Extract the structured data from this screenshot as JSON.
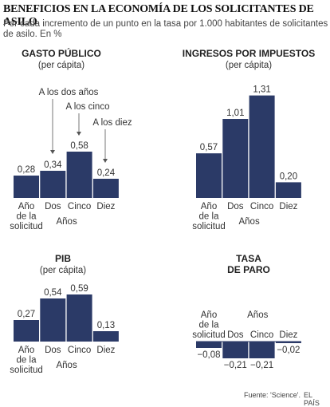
{
  "title": "BENEFICIOS EN LA ECONOMÍA DE LOS SOLICITANTES DE ASILO",
  "subtitle": "Por cada incremento de un punto en la tasa por 1.000 habitantes de solicitantes de asilo. En %",
  "colors": {
    "bar": "#2b3a67",
    "zero_line": "#2b3a67",
    "text": "#333333"
  },
  "chart_data": [
    {
      "type": "bar",
      "title": "GASTO PÚBLICO",
      "subtitle": "(per cápita)",
      "categories": [
        "Año de la solicitud",
        "Dos",
        "Cinco",
        "Diez"
      ],
      "category_lines": [
        [
          "Año",
          "de la",
          "solicitud"
        ],
        [
          "Dos"
        ],
        [
          "Cinco"
        ],
        [
          "Diez"
        ]
      ],
      "values": [
        0.28,
        0.34,
        0.58,
        0.24
      ],
      "value_labels": [
        "0,28",
        "0,34",
        "0,58",
        "0,24"
      ],
      "xlabel": "Años",
      "annotations": [
        {
          "text": "A los dos años",
          "category": 1
        },
        {
          "text": "A los cinco",
          "category": 2
        },
        {
          "text": "A los diez",
          "category": 3
        }
      ]
    },
    {
      "type": "bar",
      "title": "INGRESOS POR IMPUESTOS",
      "subtitle": "(per cápita)",
      "categories": [
        "Año de la solicitud",
        "Dos",
        "Cinco",
        "Diez"
      ],
      "category_lines": [
        [
          "Año",
          "de la",
          "solicitud"
        ],
        [
          "Dos"
        ],
        [
          "Cinco"
        ],
        [
          "Diez"
        ]
      ],
      "values": [
        0.57,
        1.01,
        1.31,
        0.2
      ],
      "value_labels": [
        "0,57",
        "1,01",
        "1,31",
        "0,20"
      ],
      "xlabel": "Años"
    },
    {
      "type": "bar",
      "title": "PIB",
      "subtitle": "(per cápita)",
      "categories": [
        "Año de la solicitud",
        "Dos",
        "Cinco",
        "Diez"
      ],
      "category_lines": [
        [
          "Año",
          "de la",
          "solicitud"
        ],
        [
          "Dos"
        ],
        [
          "Cinco"
        ],
        [
          "Diez"
        ]
      ],
      "values": [
        0.27,
        0.54,
        0.59,
        0.13
      ],
      "value_labels": [
        "0,27",
        "0,54",
        "0,59",
        "0,13"
      ],
      "xlabel": "Años"
    },
    {
      "type": "bar",
      "title": "TASA DE PARO",
      "title_lines": [
        "TASA",
        "DE PARO"
      ],
      "categories": [
        "Año de la solicitud",
        "Dos",
        "Cinco",
        "Diez"
      ],
      "category_lines": [
        [
          "Año",
          "de la",
          "solicitud"
        ],
        [
          "Dos"
        ],
        [
          "Cinco"
        ],
        [
          "Diez"
        ]
      ],
      "values": [
        -0.08,
        -0.21,
        -0.21,
        -0.02
      ],
      "value_labels": [
        "−0,08",
        "−0,21",
        "−0,21",
        "−0,02"
      ],
      "xlabel": "Años"
    }
  ],
  "footer": {
    "source": "Fuente: 'Science'.",
    "brand": "EL PAÍS"
  }
}
